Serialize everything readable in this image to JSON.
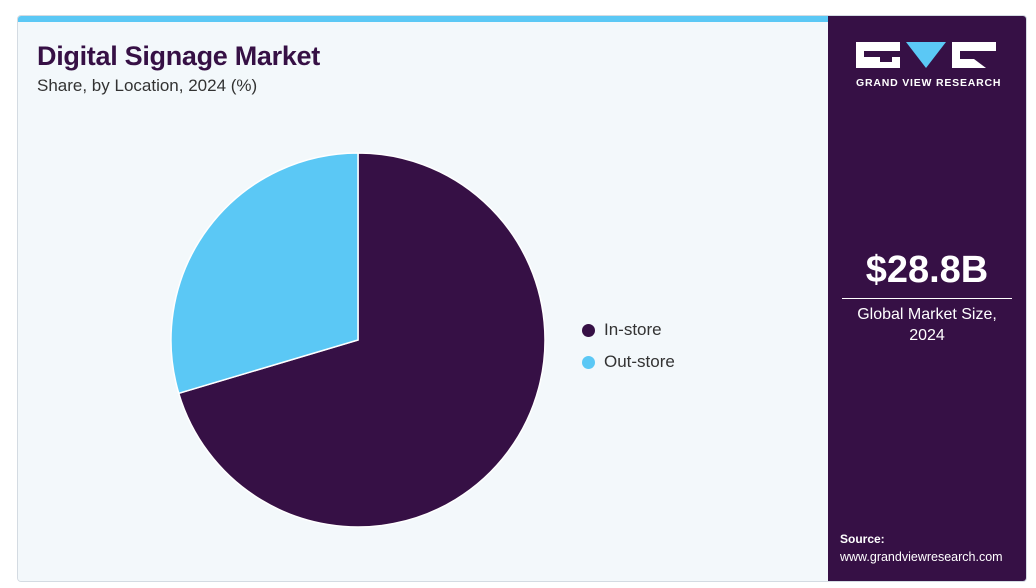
{
  "colors": {
    "brand_dark": "#361045",
    "accent_blue": "#5bc8f5",
    "background": "#f3f8fb"
  },
  "chart_data": {
    "type": "pie",
    "title": "Digital Signage Market",
    "subtitle": "Share, by Location, 2024 (%)",
    "categories": [
      "In-store",
      "Out-store"
    ],
    "values": [
      70.4,
      29.6
    ],
    "colors": [
      "#361045",
      "#5bc8f5"
    ],
    "start_angle_deg": 0,
    "direction": "clockwise",
    "legend_position": "right"
  },
  "sidebar": {
    "logo_text": "GRAND VIEW RESEARCH",
    "market_value": "$28.8B",
    "market_label_line1": "Global Market Size,",
    "market_label_line2": "2024",
    "source_label": "Source:",
    "source_url": "www.grandviewresearch.com"
  }
}
